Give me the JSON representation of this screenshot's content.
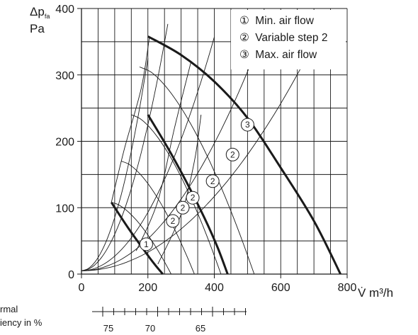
{
  "chart_data": {
    "type": "line",
    "xlabel": "V̇ m³/h",
    "ylabel_main": "Δp",
    "ylabel_sub": "fa",
    "ylabel_unit": "Pa",
    "xlim": [
      0,
      800
    ],
    "ylim": [
      0,
      400
    ],
    "x_ticks": [
      "0",
      "200",
      "400",
      "600",
      "800"
    ],
    "y_ticks": [
      "0",
      "100",
      "200",
      "300",
      "400"
    ],
    "legend": [
      {
        "symbol": "①",
        "label": "Min. air flow"
      },
      {
        "symbol": "②",
        "label": "Variable step 2"
      },
      {
        "symbol": "③",
        "label": "Max. air flow"
      }
    ],
    "series": [
      {
        "marker": "1",
        "x": [
          90,
          140,
          190,
          220,
          245
        ],
        "y": [
          108,
          70,
          35,
          15,
          0
        ]
      },
      {
        "marker": "2",
        "x": [
          200,
          260,
          320,
          370,
          410,
          440
        ],
        "y": [
          240,
          190,
          135,
          85,
          40,
          0
        ]
      },
      {
        "marker": "3",
        "x": [
          200,
          300,
          400,
          500,
          600,
          700,
          780
        ],
        "y": [
          358,
          330,
          290,
          235,
          160,
          80,
          0
        ]
      }
    ],
    "curve_markers": [
      {
        "label": "1",
        "x": 195,
        "y": 45
      },
      {
        "label": "2",
        "x": 275,
        "y": 80
      },
      {
        "label": "2",
        "x": 305,
        "y": 100
      },
      {
        "label": "2",
        "x": 335,
        "y": 115
      },
      {
        "label": "2",
        "x": 395,
        "y": 140
      },
      {
        "label": "2",
        "x": 455,
        "y": 180
      },
      {
        "label": "3",
        "x": 500,
        "y": 225
      }
    ],
    "efficiency_scale": {
      "title_lines": [
        "rmal",
        "iency in %"
      ],
      "labels": [
        "75",
        "70",
        "65"
      ]
    }
  }
}
